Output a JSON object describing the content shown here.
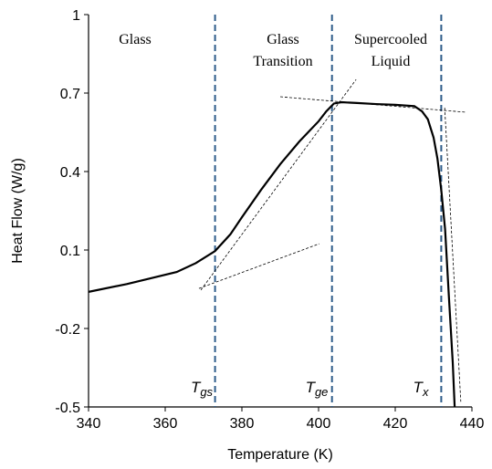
{
  "chart_data": {
    "type": "line",
    "xlabel": "Temperature  (K)",
    "ylabel": "Heat Flow  (W/g)",
    "xlim": [
      340,
      440
    ],
    "ylim": [
      -0.5,
      1
    ],
    "xticks": [
      340,
      360,
      380,
      400,
      420,
      440
    ],
    "yticks": [
      -0.5,
      -0.2,
      0.1,
      0.4,
      0.7,
      1
    ],
    "series": [
      {
        "color": "#000000",
        "x": [
          340,
          350,
          363,
          368,
          373,
          377,
          380,
          385,
          390,
          395,
          400,
          402,
          404,
          406,
          410,
          415,
          420,
          425,
          427,
          428.5,
          430,
          431,
          432,
          433,
          434,
          435,
          435.5
        ],
        "values": [
          -0.06,
          -0.03,
          0.016,
          0.05,
          0.096,
          0.16,
          0.225,
          0.33,
          0.428,
          0.515,
          0.592,
          0.63,
          0.66,
          0.665,
          0.662,
          0.658,
          0.655,
          0.65,
          0.63,
          0.6,
          0.53,
          0.45,
          0.33,
          0.18,
          -0.08,
          -0.33,
          -0.5
        ]
      }
    ],
    "guides": [
      {
        "x": [
          368.8,
          400.2
        ],
        "y": [
          -0.047,
          0.124
        ]
      },
      {
        "x": [
          369.3,
          409.8
        ],
        "y": [
          -0.053,
          0.752
        ]
      },
      {
        "x": [
          390,
          438.3
        ],
        "y": [
          0.686,
          0.627
        ]
      },
      {
        "x": [
          432.9,
          437.1
        ],
        "y": [
          0.644,
          -0.48
        ]
      }
    ],
    "vlines": [
      373,
      403.5,
      432
    ],
    "vline_color": "#2e5c8a",
    "regions": [
      "Glass",
      [
        "Glass",
        "Transition"
      ],
      [
        "Supercooled",
        "Liquid"
      ]
    ],
    "temperature_labels": [
      {
        "main": "T",
        "sub": "gs"
      },
      {
        "main": "T",
        "sub": "ge"
      },
      {
        "main": "T",
        "sub": "x"
      }
    ]
  }
}
